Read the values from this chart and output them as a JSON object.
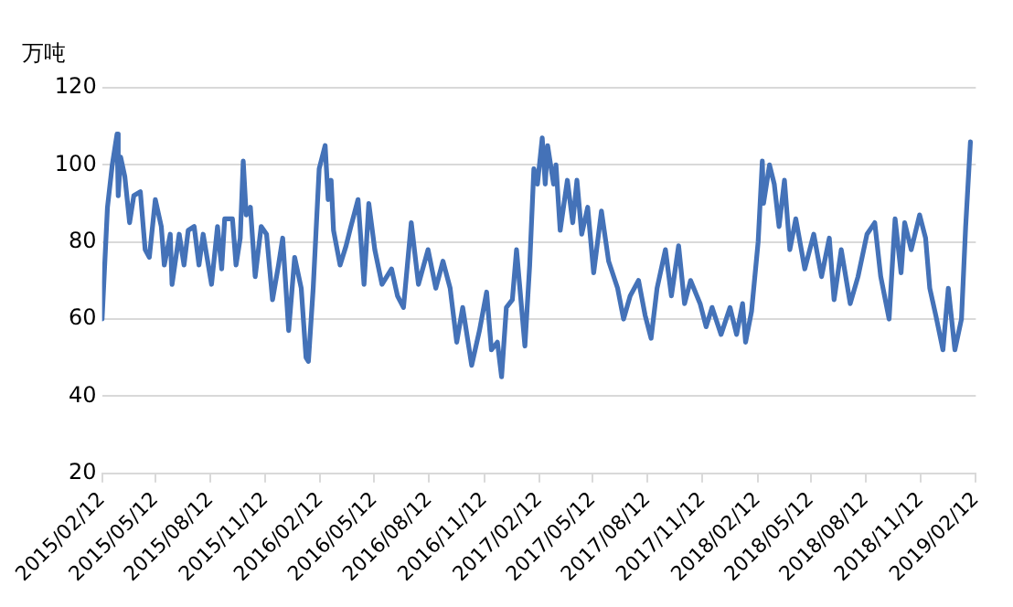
{
  "chart_data": {
    "type": "line",
    "ylabel": "万吨",
    "ylim": [
      20,
      120
    ],
    "yticks": [
      20,
      40,
      60,
      80,
      100,
      120
    ],
    "xlim": [
      "2015-02-12",
      "2019-02-12"
    ],
    "xticks": [
      {
        "value": "2015-02-12",
        "label": "2015/02/12"
      },
      {
        "value": "2015-05-12",
        "label": "2015/05/12"
      },
      {
        "value": "2015-08-12",
        "label": "2015/08/12"
      },
      {
        "value": "2015-11-12",
        "label": "2015/11/12"
      },
      {
        "value": "2016-02-12",
        "label": "2016/02/12"
      },
      {
        "value": "2016-05-12",
        "label": "2016/05/12"
      },
      {
        "value": "2016-08-12",
        "label": "2016/08/12"
      },
      {
        "value": "2016-11-12",
        "label": "2016/11/12"
      },
      {
        "value": "2017-02-12",
        "label": "2017/02/12"
      },
      {
        "value": "2017-05-12",
        "label": "2017/05/12"
      },
      {
        "value": "2017-08-12",
        "label": "2017/08/12"
      },
      {
        "value": "2017-11-12",
        "label": "2017/11/12"
      },
      {
        "value": "2018-02-12",
        "label": "2018/02/12"
      },
      {
        "value": "2018-05-12",
        "label": "2018/05/12"
      },
      {
        "value": "2018-08-12",
        "label": "2018/08/12"
      },
      {
        "value": "2018-11-12",
        "label": "2018/11/12"
      },
      {
        "value": "2019-02-12",
        "label": "2019/02/12"
      }
    ],
    "grid": "y",
    "legend": false,
    "marker": "none",
    "line_style": "solid",
    "series": [
      {
        "color": "#4472b8",
        "x": [
          "2015-02-12",
          "2015-02-21",
          "2015-03-01",
          "2015-03-09",
          "2015-03-11",
          "2015-03-15",
          "2015-03-22",
          "2015-03-30",
          "2015-04-06",
          "2015-04-17",
          "2015-04-25",
          "2015-05-02",
          "2015-05-12",
          "2015-05-22",
          "2015-05-27",
          "2015-06-06",
          "2015-06-09",
          "2015-06-21",
          "2015-06-29",
          "2015-07-06",
          "2015-07-16",
          "2015-07-24",
          "2015-07-31",
          "2015-08-14",
          "2015-08-24",
          "2015-08-31",
          "2015-09-05",
          "2015-09-18",
          "2015-09-24",
          "2015-10-01",
          "2015-10-06",
          "2015-10-11",
          "2015-10-18",
          "2015-10-26",
          "2015-11-05",
          "2015-11-14",
          "2015-11-24",
          "2015-12-04",
          "2015-12-11",
          "2015-12-21",
          "2015-12-31",
          "2016-01-11",
          "2016-01-19",
          "2016-01-23",
          "2016-01-31",
          "2016-02-10",
          "2016-02-20",
          "2016-02-25",
          "2016-03-01",
          "2016-03-05",
          "2016-03-16",
          "2016-03-26",
          "2016-04-03",
          "2016-04-15",
          "2016-04-25",
          "2016-05-03",
          "2016-05-13",
          "2016-05-25",
          "2016-06-10",
          "2016-06-20",
          "2016-06-30",
          "2016-07-13",
          "2016-07-25",
          "2016-08-10",
          "2016-08-23",
          "2016-09-04",
          "2016-09-16",
          "2016-09-27",
          "2016-10-07",
          "2016-10-22",
          "2016-11-04",
          "2016-11-16",
          "2016-11-24",
          "2016-12-04",
          "2016-12-11",
          "2016-12-19",
          "2016-12-29",
          "2017-01-05",
          "2017-01-19",
          "2017-01-27",
          "2017-02-03",
          "2017-02-09",
          "2017-02-17",
          "2017-02-22",
          "2017-02-26",
          "2017-03-08",
          "2017-03-12",
          "2017-03-19",
          "2017-03-31",
          "2017-04-09",
          "2017-04-16",
          "2017-04-24",
          "2017-05-04",
          "2017-05-14",
          "2017-05-27",
          "2017-06-08",
          "2017-06-23",
          "2017-07-03",
          "2017-07-14",
          "2017-07-28",
          "2017-08-08",
          "2017-08-18",
          "2017-08-28",
          "2017-09-11",
          "2017-09-21",
          "2017-10-03",
          "2017-10-13",
          "2017-10-23",
          "2017-11-08",
          "2017-11-18",
          "2017-11-28",
          "2017-12-13",
          "2017-12-28",
          "2018-01-08",
          "2018-01-18",
          "2018-01-23",
          "2018-02-02",
          "2018-02-13",
          "2018-02-20",
          "2018-02-22",
          "2018-03-04",
          "2018-03-12",
          "2018-03-20",
          "2018-03-29",
          "2018-04-07",
          "2018-04-17",
          "2018-05-02",
          "2018-05-17",
          "2018-05-30",
          "2018-06-12",
          "2018-06-20",
          "2018-07-02",
          "2018-07-17",
          "2018-07-30",
          "2018-08-14",
          "2018-08-27",
          "2018-09-06",
          "2018-09-20",
          "2018-09-30",
          "2018-10-10",
          "2018-10-16",
          "2018-10-27",
          "2018-11-10",
          "2018-11-20",
          "2018-11-27",
          "2018-12-07",
          "2018-12-19",
          "2018-12-28",
          "2019-01-08",
          "2019-01-19",
          "2019-01-26",
          "2019-02-03"
        ],
        "values": [
          60,
          89,
          100,
          108,
          92,
          102,
          97,
          85,
          92,
          93,
          78,
          76,
          91,
          84,
          74,
          82,
          69,
          82,
          74,
          83,
          84,
          74,
          82,
          69,
          84,
          73,
          86,
          86,
          74,
          81,
          101,
          87,
          89,
          71,
          84,
          82,
          65,
          74,
          81,
          57,
          76,
          68,
          50,
          49,
          68,
          99,
          105,
          91,
          96,
          83,
          74,
          79,
          84,
          91,
          69,
          90,
          78,
          69,
          73,
          66,
          63,
          85,
          69,
          78,
          68,
          75,
          68,
          54,
          63,
          48,
          57,
          67,
          52,
          54,
          45,
          63,
          65,
          78,
          53,
          74,
          99,
          95,
          107,
          95,
          105,
          95,
          100,
          83,
          96,
          85,
          96,
          82,
          89,
          72,
          88,
          75,
          68,
          60,
          66,
          70,
          61,
          55,
          68,
          78,
          66,
          79,
          64,
          70,
          64,
          58,
          63,
          56,
          63,
          56,
          64,
          54,
          62,
          80,
          101,
          90,
          100,
          95,
          84,
          96,
          78,
          86,
          73,
          82,
          71,
          81,
          65,
          78,
          64,
          71,
          82,
          85,
          71,
          60,
          86,
          72,
          85,
          78,
          87,
          81,
          68,
          61,
          52,
          68,
          52,
          60,
          84,
          106
        ]
      }
    ]
  }
}
